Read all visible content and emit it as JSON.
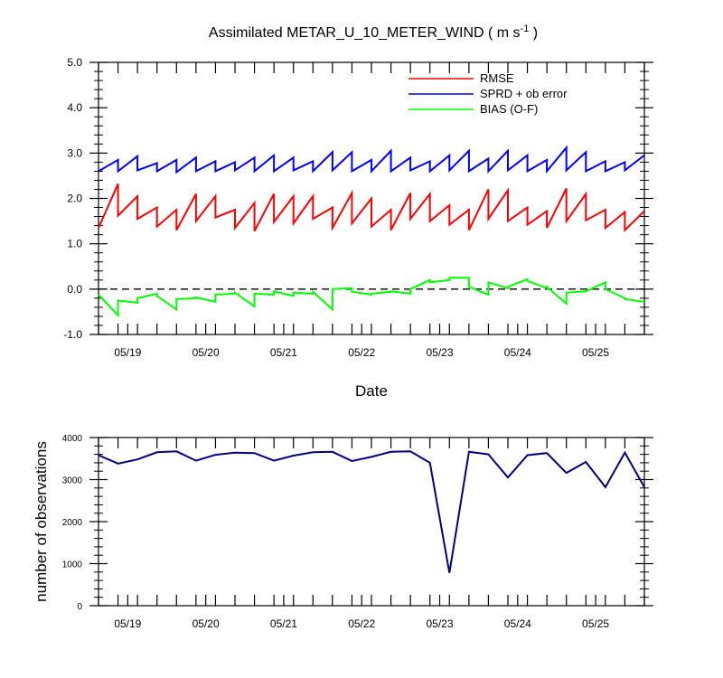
{
  "chart_data": [
    {
      "type": "line",
      "title": "Assimilated METAR_U_10_METER_WIND ( m s",
      "title_units_sup": "-1",
      "title_close": " )",
      "xlabel": "Date",
      "ylabel": "",
      "ylim": [
        -1.0,
        5.0
      ],
      "yticks": [
        -1.0,
        0.0,
        1.0,
        2.0,
        3.0,
        4.0,
        5.0
      ],
      "ytick_labels": [
        "-1.0",
        "0.0",
        "1.0",
        "2.0",
        "3.0",
        "4.0",
        "5.0"
      ],
      "xlim": [
        0,
        28
      ],
      "xticks": [
        1.5,
        5.5,
        9.5,
        13.5,
        17.5,
        21.5,
        25.5
      ],
      "xtick_labels": [
        "05/19",
        "05/20",
        "05/21",
        "05/22",
        "05/23",
        "05/24",
        "05/25"
      ],
      "zero_line": true,
      "legend_position": "top-right",
      "series": [
        {
          "name": "RMSE",
          "color": "#ff0000",
          "x": [
            0,
            1,
            1,
            2,
            2,
            3,
            3,
            4,
            4,
            5,
            5,
            6,
            6,
            7,
            7,
            8,
            8,
            9,
            9,
            10,
            10,
            11,
            11,
            12,
            12,
            13,
            13,
            14,
            14,
            15,
            15,
            16,
            16,
            17,
            17,
            18,
            18,
            19,
            19,
            20,
            20,
            21,
            21,
            22,
            22,
            23,
            23,
            24,
            24,
            25,
            25,
            26,
            26,
            27,
            27,
            28
          ],
          "y": [
            1.35,
            2.32,
            1.62,
            2.05,
            1.55,
            1.8,
            1.38,
            1.75,
            1.3,
            2.1,
            1.5,
            2.05,
            1.58,
            1.75,
            1.35,
            1.9,
            1.28,
            2.1,
            1.48,
            2.05,
            1.45,
            2.05,
            1.55,
            1.8,
            1.35,
            2.12,
            1.45,
            2.0,
            1.38,
            1.75,
            1.3,
            2.12,
            1.55,
            2.1,
            1.5,
            1.85,
            1.42,
            1.75,
            1.3,
            2.2,
            1.55,
            2.18,
            1.5,
            1.8,
            1.42,
            1.72,
            1.35,
            2.22,
            1.5,
            2.1,
            1.52,
            1.75,
            1.35,
            1.7,
            1.3,
            1.72
          ]
        },
        {
          "name": "SPRD + ob error",
          "color": "#0000ff",
          "x": [
            0,
            1,
            1,
            2,
            2,
            3,
            3,
            4,
            4,
            5,
            5,
            6,
            6,
            7,
            7,
            8,
            8,
            9,
            9,
            10,
            10,
            11,
            11,
            12,
            12,
            13,
            13,
            14,
            14,
            15,
            15,
            16,
            16,
            17,
            17,
            18,
            18,
            19,
            19,
            20,
            20,
            21,
            21,
            22,
            22,
            23,
            23,
            24,
            24,
            25,
            25,
            26,
            26,
            27,
            27,
            28
          ],
          "y": [
            2.6,
            2.85,
            2.6,
            2.93,
            2.62,
            2.78,
            2.6,
            2.85,
            2.58,
            2.9,
            2.6,
            2.82,
            2.6,
            2.8,
            2.62,
            2.9,
            2.6,
            2.95,
            2.6,
            2.9,
            2.62,
            2.82,
            2.6,
            3.02,
            2.62,
            3.02,
            2.6,
            2.85,
            2.6,
            3.05,
            2.6,
            2.9,
            2.62,
            2.82,
            2.6,
            2.95,
            2.62,
            3.05,
            2.6,
            2.88,
            2.6,
            3.05,
            2.62,
            2.95,
            2.6,
            2.85,
            2.6,
            3.12,
            2.62,
            3.02,
            2.6,
            2.82,
            2.6,
            2.8,
            2.62,
            2.95
          ]
        },
        {
          "name": "BIAS (O-F)",
          "color": "#00ff00",
          "x": [
            0,
            1,
            1,
            2,
            2,
            3,
            3,
            4,
            4,
            5,
            5,
            6,
            6,
            7,
            7,
            8,
            8,
            9,
            9,
            10,
            10,
            11,
            11,
            12,
            12,
            13,
            13,
            14,
            14,
            15,
            15,
            16,
            16,
            17,
            17,
            18,
            18,
            19,
            19,
            20,
            20,
            21,
            21,
            22,
            22,
            23,
            23,
            24,
            24,
            25,
            25,
            26,
            26,
            27,
            27,
            28
          ],
          "y": [
            -0.12,
            -0.58,
            -0.25,
            -0.3,
            -0.2,
            -0.1,
            -0.15,
            -0.45,
            -0.22,
            -0.2,
            -0.18,
            -0.28,
            -0.12,
            -0.1,
            -0.08,
            -0.38,
            -0.1,
            -0.12,
            -0.05,
            -0.15,
            -0.08,
            -0.1,
            -0.06,
            -0.45,
            0.0,
            0.02,
            -0.06,
            -0.12,
            -0.1,
            -0.06,
            -0.05,
            -0.1,
            0.0,
            0.2,
            0.15,
            0.2,
            0.25,
            0.25,
            0.05,
            -0.12,
            0.15,
            0.02,
            0.05,
            0.22,
            0.18,
            0.02,
            0.05,
            -0.32,
            -0.08,
            -0.05,
            -0.05,
            0.15,
            0.0,
            -0.2,
            -0.22,
            -0.28
          ]
        }
      ]
    },
    {
      "type": "line",
      "title": "",
      "xlabel": "",
      "ylabel": "number of observations",
      "ylim": [
        0,
        4000
      ],
      "yticks": [
        0,
        1000,
        2000,
        3000,
        4000
      ],
      "ytick_labels": [
        "0",
        "1000",
        "2000",
        "3000",
        "4000"
      ],
      "xlim": [
        0,
        28
      ],
      "xticks": [
        1.5,
        5.5,
        9.5,
        13.5,
        17.5,
        21.5,
        25.5
      ],
      "xtick_labels": [
        "05/19",
        "05/20",
        "05/21",
        "05/22",
        "05/23",
        "05/24",
        "05/25"
      ],
      "series": [
        {
          "name": "number of observations",
          "color": "#000080",
          "x": [
            0,
            1,
            2,
            3,
            4,
            5,
            6,
            7,
            8,
            9,
            10,
            11,
            12,
            13,
            14,
            15,
            16,
            17,
            18,
            19,
            20,
            21,
            22,
            23,
            24,
            25,
            26,
            27,
            28
          ],
          "y": [
            3580,
            3380,
            3480,
            3650,
            3670,
            3450,
            3590,
            3640,
            3630,
            3450,
            3570,
            3650,
            3660,
            3440,
            3540,
            3660,
            3670,
            3400,
            780,
            3660,
            3600,
            3050,
            3580,
            3630,
            3160,
            3420,
            2820,
            3640,
            2820
          ]
        }
      ]
    }
  ]
}
